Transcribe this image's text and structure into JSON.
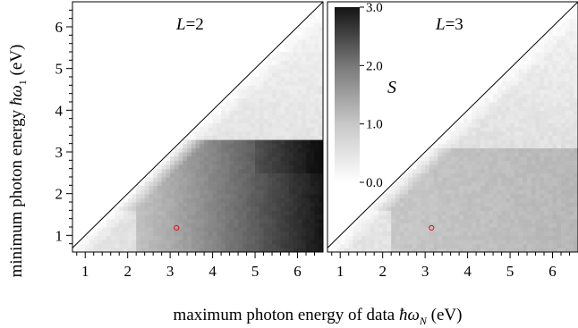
{
  "chart_data": [
    {
      "type": "heatmap",
      "panel_label": "L=2",
      "xlabel": "maximum photon energy of data ħω_N (eV)",
      "ylabel": "minimum photon energy ħω_1 (eV)",
      "xlim": [
        0.7,
        6.6
      ],
      "ylim": [
        0.6,
        6.6
      ],
      "x_ticks": [
        "1",
        "2",
        "3",
        "4",
        "5",
        "6"
      ],
      "y_ticks": [
        "1",
        "2",
        "3",
        "4",
        "5",
        "6"
      ],
      "value_name": "S",
      "marker": {
        "x": 3.15,
        "y": 1.18,
        "color": "#e01010"
      },
      "diagonal": "y = x",
      "description_of_field": "S rises with x; upper-left triangle (y > x) blank"
    },
    {
      "type": "heatmap",
      "panel_label": "L=3",
      "xlim": [
        0.7,
        6.6
      ],
      "ylim": [
        0.6,
        6.6
      ],
      "x_ticks": [
        "1",
        "2",
        "3",
        "4",
        "5",
        "6"
      ],
      "value_name": "S",
      "marker": {
        "x": 3.15,
        "y": 1.18,
        "color": "#e01010"
      },
      "diagonal": "y = x"
    }
  ],
  "colorbar": {
    "label": "S",
    "range": [
      0.0,
      3.0
    ],
    "ticks": [
      "0.0",
      "1.0",
      "2.0",
      "3.0"
    ],
    "low_color": "#ffffff",
    "high_color": "#141414"
  },
  "text": {
    "panel_left_L": "L",
    "panel_left_eq": "=2",
    "panel_right_L": "L",
    "panel_right_eq": "=3",
    "xlabel_main": "maximum photon energy of data ",
    "xlabel_hbar": "ħω",
    "xlabel_sub": "N",
    "xlabel_unit": " (eV)",
    "ylabel_main": "minimum photon energy ",
    "ylabel_hbar": "ħω",
    "ylabel_sub": "1",
    "ylabel_unit": " (eV)",
    "cb_label": "S"
  }
}
